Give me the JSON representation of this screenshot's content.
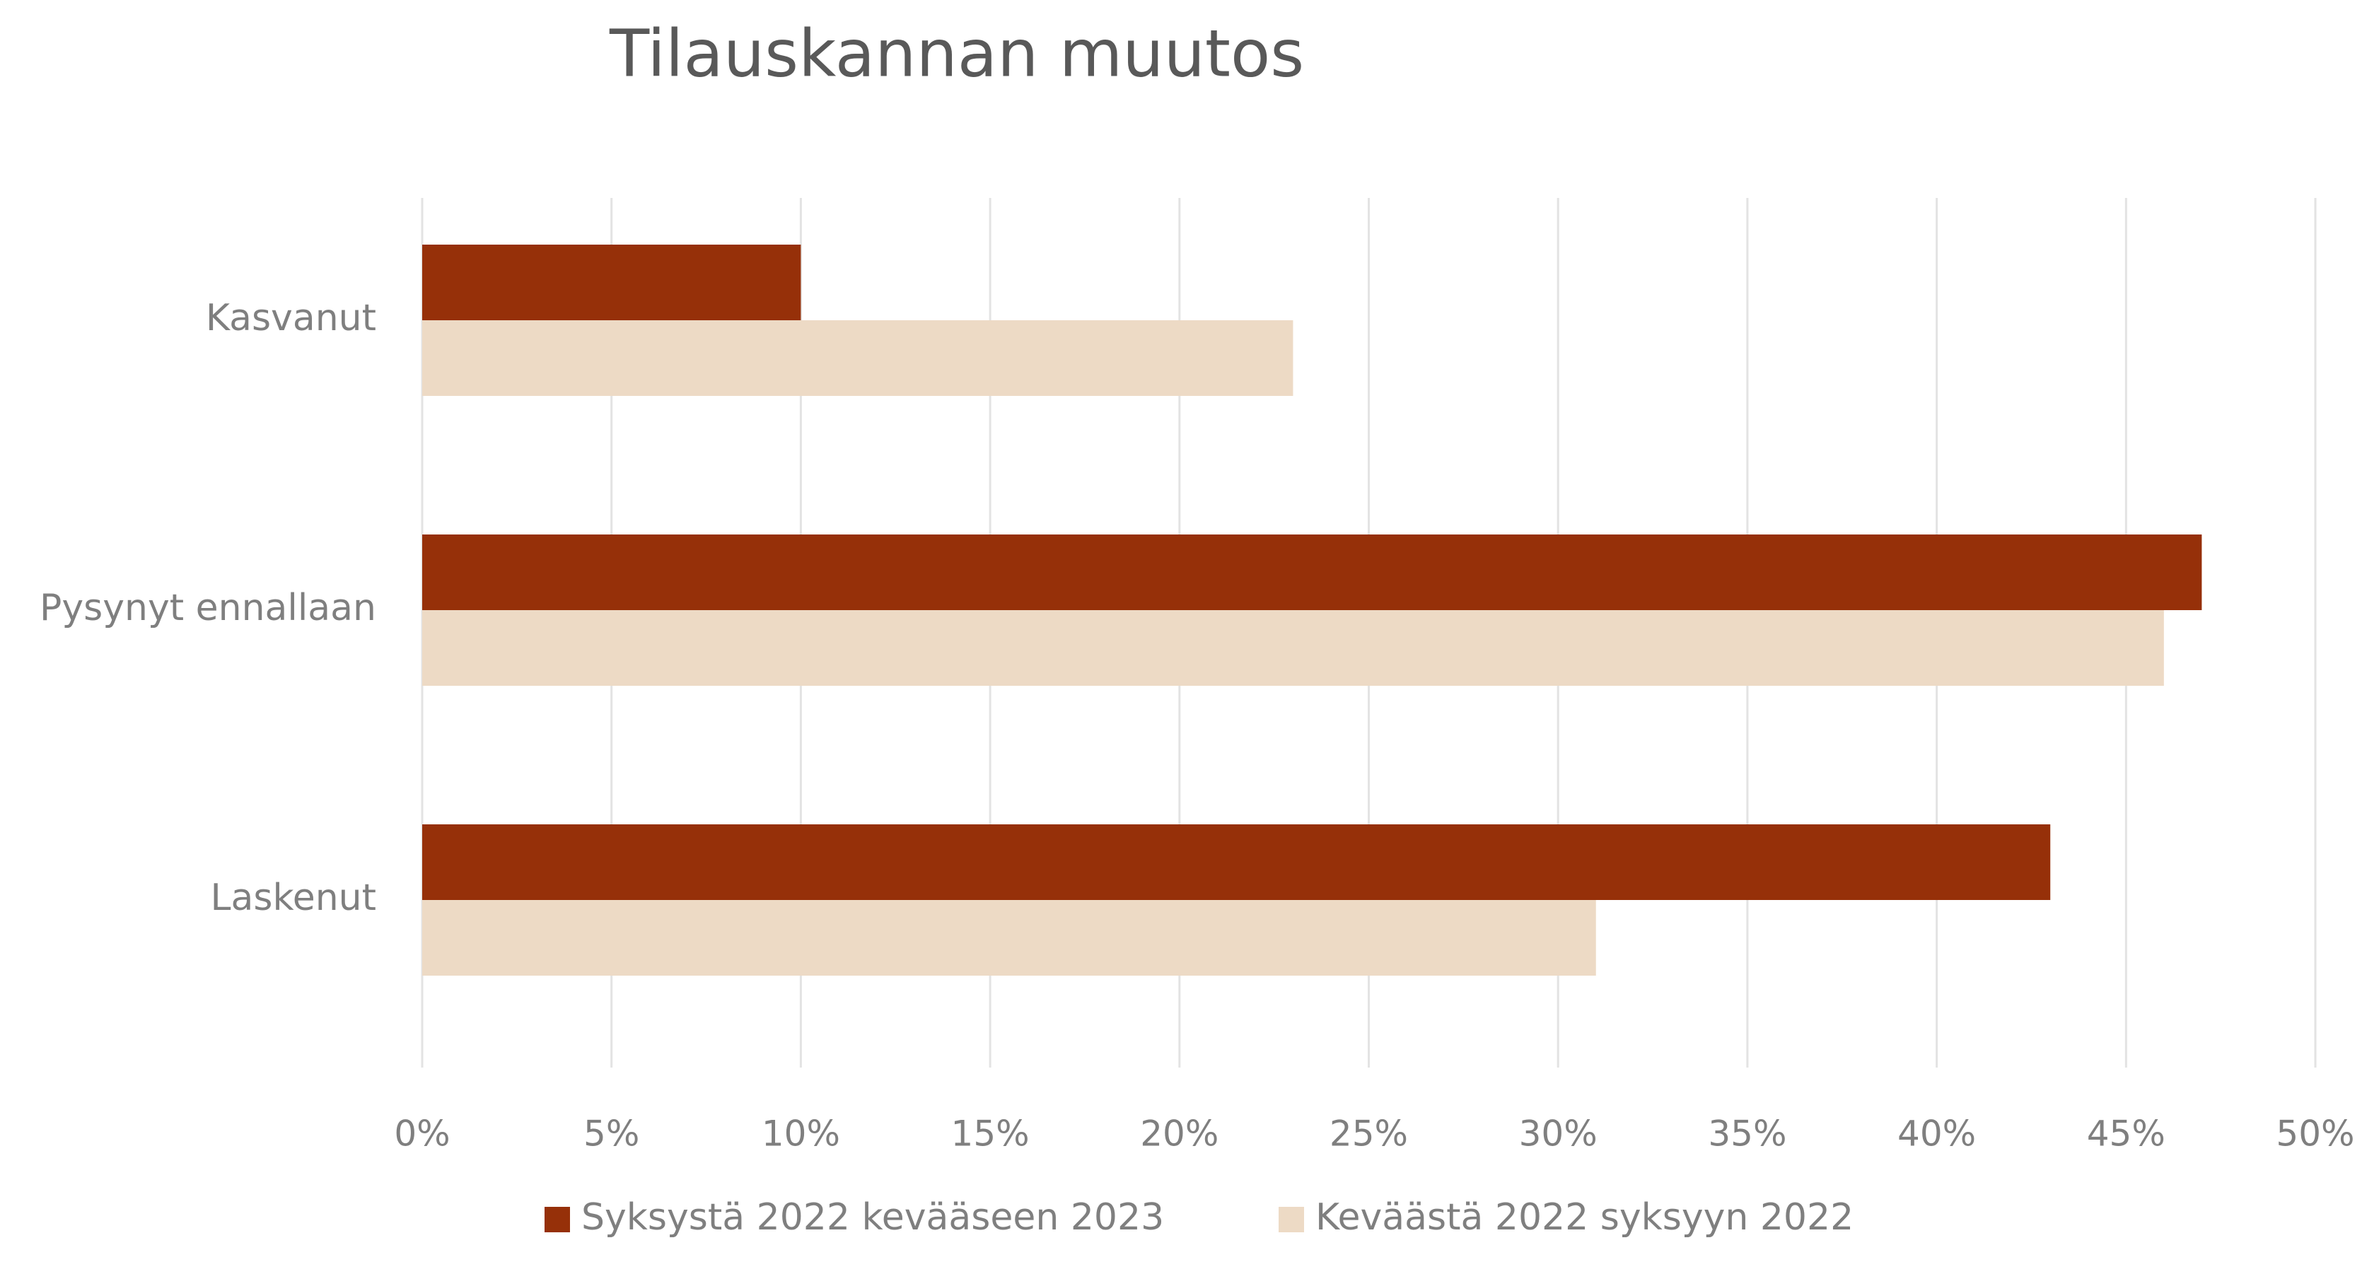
{
  "chart_data": {
    "type": "hbar",
    "title": "Tilauskannan muutos",
    "categories": [
      "Kasvanut",
      "Pysynyt ennallaan",
      "Laskenut"
    ],
    "series": [
      {
        "name": "Syksystä 2022 kevääseen 2023",
        "color": "#963009",
        "values": [
          10,
          47,
          43
        ]
      },
      {
        "name": "Keväästä 2022 syksyyn 2022",
        "color": "#eddac5",
        "values": [
          23,
          46,
          31
        ]
      }
    ],
    "xlim": [
      0,
      50
    ],
    "xticks": [
      {
        "value": 0,
        "label": "0%"
      },
      {
        "value": 5,
        "label": "5%"
      },
      {
        "value": 10,
        "label": "10%"
      },
      {
        "value": 15,
        "label": "15%"
      },
      {
        "value": 20,
        "label": "20%"
      },
      {
        "value": 25,
        "label": "25%"
      },
      {
        "value": 30,
        "label": "30%"
      },
      {
        "value": 35,
        "label": "35%"
      },
      {
        "value": 40,
        "label": "40%"
      },
      {
        "value": 45,
        "label": "45%"
      },
      {
        "value": 50,
        "label": "50%"
      }
    ],
    "grid": true,
    "legend": "bottom"
  }
}
